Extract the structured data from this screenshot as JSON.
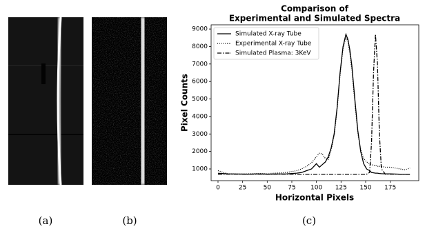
{
  "captions": [
    "(a)",
    "(b)",
    "(c)"
  ],
  "chart_data": {
    "type": "line",
    "title": [
      "Comparison of",
      "Experimental and Simulated Spectra"
    ],
    "x_label": "Horizontal Pixels",
    "y_label": "Pixel Counts",
    "x": [
      0,
      10,
      20,
      30,
      40,
      50,
      60,
      70,
      80,
      85,
      90,
      95,
      100,
      103,
      106,
      109,
      112,
      115,
      118,
      121,
      124,
      127,
      130,
      132,
      134,
      136,
      139,
      142,
      145,
      148,
      151,
      154,
      156,
      158,
      160,
      162,
      164,
      166,
      170,
      175,
      180,
      185,
      190,
      195
    ],
    "series": [
      {
        "name": "Simulated X-ray Tube",
        "color": "#000000",
        "linestyle": "solid",
        "values": [
          750,
          720,
          710,
          700,
          720,
          700,
          710,
          720,
          760,
          800,
          900,
          1000,
          1300,
          1100,
          1250,
          1400,
          1700,
          2200,
          3000,
          4500,
          6500,
          8000,
          8700,
          8400,
          7800,
          6900,
          5000,
          3200,
          2000,
          1300,
          1000,
          900,
          800,
          780,
          760,
          760,
          740,
          730,
          720,
          720,
          710,
          700,
          700,
          700
        ]
      },
      {
        "name": "Experimental X-ray Tube",
        "color": "#000000",
        "linestyle": "dotted",
        "values": [
          900,
          720,
          720,
          720,
          730,
          740,
          760,
          800,
          900,
          1000,
          1150,
          1350,
          1700,
          1900,
          1850,
          1600,
          1550,
          2100,
          2900,
          4400,
          6400,
          7900,
          8500,
          8300,
          7600,
          6700,
          4800,
          3100,
          2100,
          1600,
          1400,
          1300,
          1250,
          1200,
          1200,
          1150,
          1150,
          1150,
          1100,
          1100,
          1050,
          1000,
          950,
          1050
        ]
      },
      {
        "name": "Simulated Plasma: 3KeV",
        "color": "#000000",
        "linestyle": "dashdot",
        "values": [
          700,
          700,
          700,
          700,
          700,
          700,
          700,
          700,
          700,
          700,
          700,
          700,
          700,
          700,
          700,
          700,
          700,
          700,
          700,
          700,
          700,
          700,
          700,
          700,
          700,
          700,
          700,
          700,
          700,
          700,
          700,
          800,
          2500,
          6500,
          8700,
          7000,
          3000,
          1000,
          700,
          700,
          700,
          700,
          700,
          700
        ]
      }
    ],
    "xlim": [
      -7,
      204
    ],
    "xticks": [
      0,
      25,
      50,
      75,
      100,
      125,
      150,
      175
    ],
    "ylim": [
      330,
      9240
    ],
    "yticks": [
      1000,
      2000,
      3000,
      4000,
      5000,
      6000,
      7000,
      8000,
      9000
    ],
    "legend": "upper left",
    "grid": false
  }
}
